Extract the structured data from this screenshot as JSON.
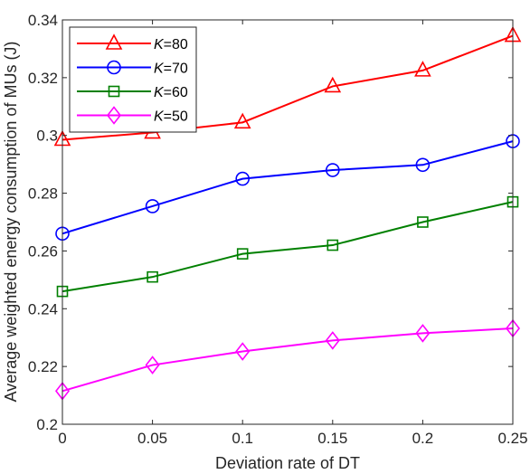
{
  "chart_data": {
    "type": "line",
    "title": "",
    "xlabel": "Deviation rate of DT",
    "ylabel": "Average weighted energy consumption of MUs (J)",
    "x": [
      0,
      0.05,
      0.1,
      0.15,
      0.2,
      0.25
    ],
    "xlim": [
      0,
      0.25
    ],
    "ylim": [
      0.2,
      0.34
    ],
    "xticks": [
      "0",
      "0.05",
      "0.1",
      "0.15",
      "0.2",
      "0.25"
    ],
    "yticks": [
      "0.2",
      "0.22",
      "0.24",
      "0.26",
      "0.28",
      "0.3",
      "0.32",
      "0.34"
    ],
    "grid": false,
    "legend_position": "top-left",
    "series": [
      {
        "name": "K=80",
        "name_italic": "K",
        "name_rest": "=80",
        "color": "#ff0000",
        "marker": "triangle",
        "values": [
          0.2985,
          0.301,
          0.3045,
          0.317,
          0.3225,
          0.3345
        ]
      },
      {
        "name": "K=70",
        "name_italic": "K",
        "name_rest": "=70",
        "color": "#0000ff",
        "marker": "circle",
        "values": [
          0.266,
          0.2755,
          0.285,
          0.288,
          0.2898,
          0.298
        ]
      },
      {
        "name": "K=60",
        "name_italic": "K",
        "name_rest": "=60",
        "color": "#008000",
        "marker": "square",
        "values": [
          0.246,
          0.251,
          0.259,
          0.262,
          0.27,
          0.277
        ]
      },
      {
        "name": "K=50",
        "name_italic": "K",
        "name_rest": "=50",
        "color": "#ff00ff",
        "marker": "diamond",
        "values": [
          0.2115,
          0.2205,
          0.2252,
          0.229,
          0.2315,
          0.2332
        ]
      }
    ]
  }
}
